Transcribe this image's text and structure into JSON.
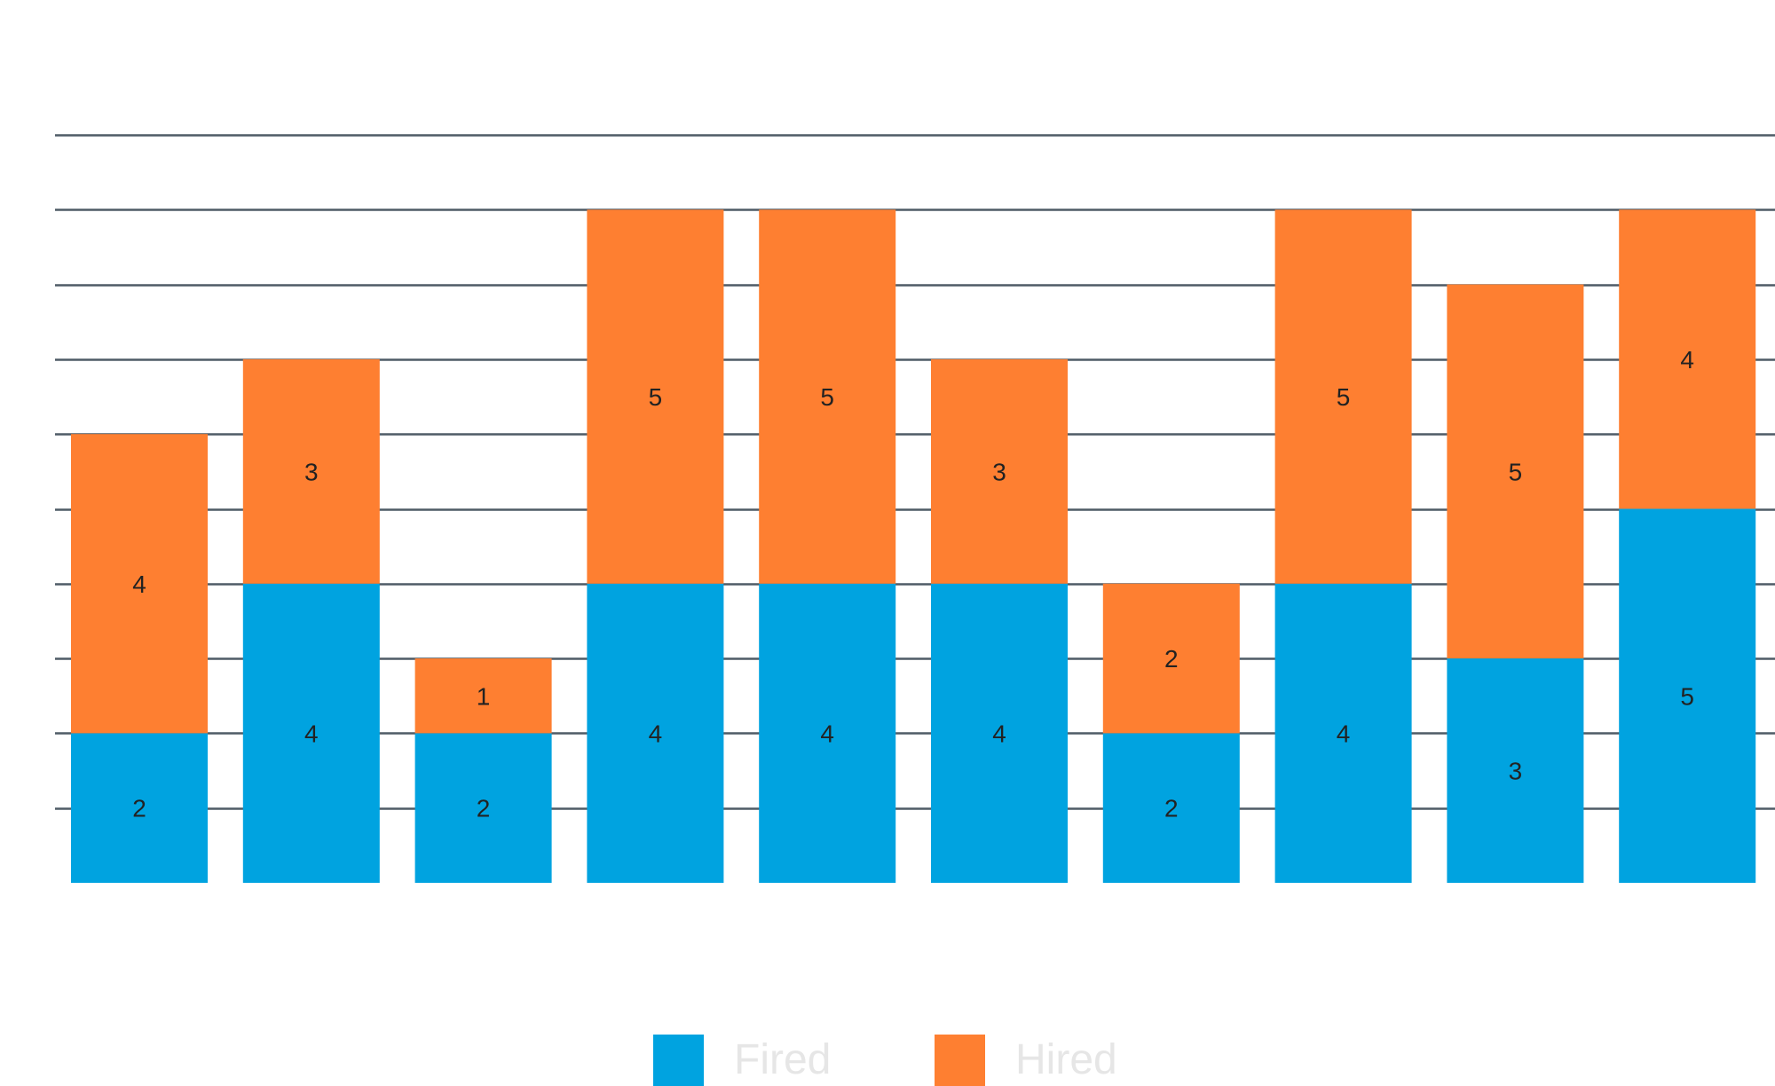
{
  "colors": {
    "fired": "#00a3e0",
    "hired": "#fe7f31",
    "gridline": "#4f5b66",
    "legend_text": "#e6e6e6"
  },
  "legend": {
    "position": "bottom-center",
    "items": [
      {
        "label": "Fired",
        "color": "#00a3e0"
      },
      {
        "label": "Hired",
        "color": "#fe7f31"
      }
    ]
  },
  "chart_data": {
    "type": "bar",
    "stacked": true,
    "categories": [
      "",
      "",
      "",
      "",
      "",
      "",
      "",
      "",
      "",
      ""
    ],
    "series": [
      {
        "name": "Fired",
        "color": "#00a3e0",
        "values": [
          2,
          4,
          2,
          4,
          4,
          4,
          2,
          4,
          3,
          5
        ]
      },
      {
        "name": "Hired",
        "color": "#fe7f31",
        "values": [
          4,
          3,
          1,
          5,
          5,
          3,
          2,
          5,
          5,
          4
        ]
      }
    ],
    "ylim": [
      0,
      10
    ],
    "grid": true,
    "data_labels": true,
    "legend": "bottom-center"
  }
}
